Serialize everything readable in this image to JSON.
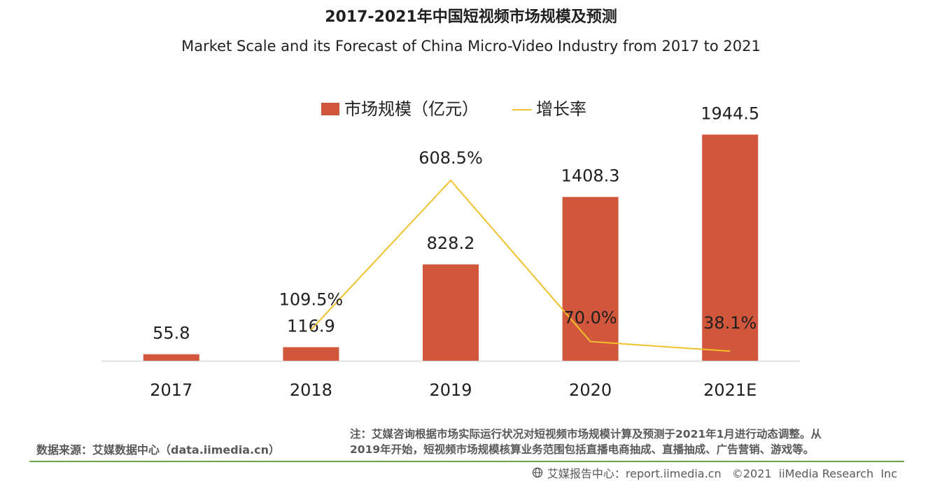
{
  "title_cn": "2017-2021年中国短视频市场规模及预测",
  "title_en": "Market Scale and its Forecast of China Micro-Video Industry from 2017 to 2021",
  "chart_data": {
    "type": "bar",
    "categories": [
      "2017",
      "2018",
      "2019",
      "2020",
      "2021E"
    ],
    "series": [
      {
        "name": "市场规模（亿元）",
        "kind": "bar",
        "color": "#d0563c",
        "values": [
          55.8,
          116.9,
          828.2,
          1408.3,
          1944.5
        ],
        "labels": [
          "55.8",
          "116.9",
          "828.2",
          "1408.3",
          "1944.5"
        ]
      },
      {
        "name": "增长率",
        "kind": "line",
        "color": "#f2c12e",
        "values": [
          null,
          109.5,
          608.5,
          70.0,
          38.1
        ],
        "labels": [
          "",
          "109.5%",
          "608.5%",
          "70.0%",
          "38.1%"
        ]
      }
    ],
    "bar_axis_range": [
      0,
      2200
    ],
    "line_axis_range": [
      0,
      750
    ],
    "legend_position": "top-center",
    "grid": false
  },
  "footer": {
    "source": "数据来源：艾媒数据中心（data.iimedia.cn）",
    "note": "注：艾媒咨询根据市场实际运行状况对短视频市场规模计算及预测于2021年1月进行动态调整。从\n2019年开始，短视频市场规模核算业务范围包括直播电商抽成、直播抽成、广告营销、游戏等。",
    "brand": "艾媒报告中心：report.iimedia.cn   ©2021  iiMedia Research  Inc"
  },
  "colors": {
    "bar": "#d0563c",
    "line": "#f2c12e",
    "axis": "#d9d9d9",
    "footer_rule": "#6aa84f"
  }
}
